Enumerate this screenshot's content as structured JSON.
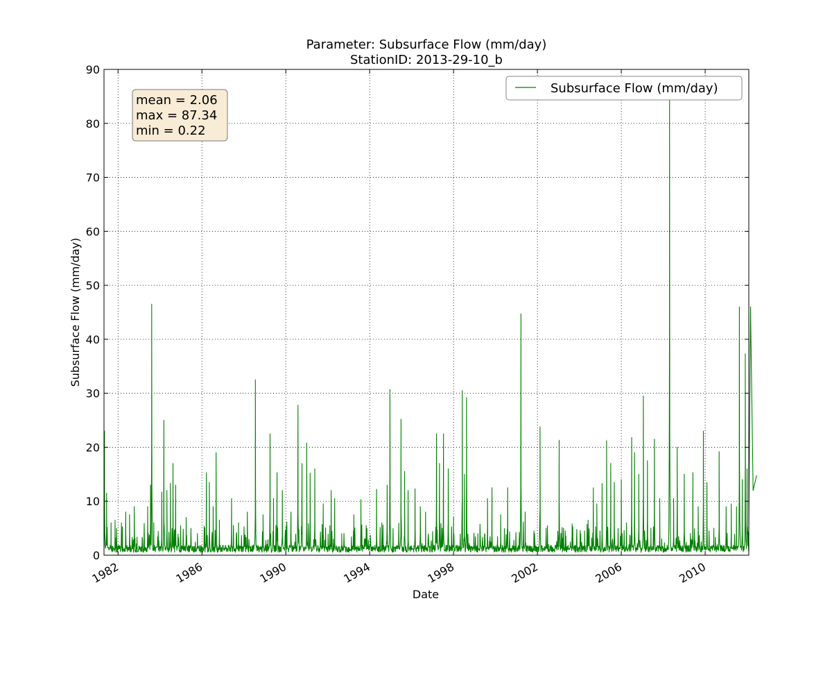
{
  "chart_data": {
    "type": "line",
    "title": [
      "Parameter: Subsurface Flow (mm/day)",
      "StationID: 2013-29-10_b"
    ],
    "xlabel": "Date",
    "ylabel": "Subsurface Flow (mm/day)",
    "xlim": [
      "1981-05-01",
      "2012-01-31"
    ],
    "ylim": [
      0,
      90
    ],
    "x_ticks": [
      "1982",
      "1986",
      "1990",
      "1994",
      "1998",
      "2002",
      "2006",
      "2010"
    ],
    "y_ticks": [
      0,
      10,
      20,
      30,
      40,
      50,
      60,
      70,
      80,
      90
    ],
    "grid": true,
    "legend": {
      "position": "top-right",
      "entries": [
        "Subsurface Flow (mm/day)"
      ]
    },
    "stats_box": [
      "mean = 2.06",
      "max = 87.34",
      "min = 0.22"
    ],
    "series": [
      {
        "name": "Subsurface Flow (mm/day)",
        "color": "#008000",
        "baseline": 1.2,
        "peaks": [
          [
            "1981-05-10",
            23.0
          ],
          [
            "1981-06-15",
            11.5
          ],
          [
            "1981-09-01",
            6.0
          ],
          [
            "1981-11-10",
            6.5
          ],
          [
            "1982-03-01",
            6.0
          ],
          [
            "1982-05-15",
            8.0
          ],
          [
            "1982-07-20",
            7.5
          ],
          [
            "1982-10-10",
            9.0
          ],
          [
            "1983-06-01",
            9.0
          ],
          [
            "1983-07-20",
            13.0
          ],
          [
            "1983-08-10",
            46.5
          ],
          [
            "1983-09-15",
            6.0
          ],
          [
            "1984-02-01",
            11.7
          ],
          [
            "1984-03-10",
            25.0
          ],
          [
            "1984-05-01",
            12.0
          ],
          [
            "1984-07-01",
            13.3
          ],
          [
            "1984-08-15",
            17.0
          ],
          [
            "1984-10-01",
            13.0
          ],
          [
            "1985-04-01",
            7.0
          ],
          [
            "1985-10-15",
            4.0
          ],
          [
            "1986-03-20",
            15.3
          ],
          [
            "1986-05-10",
            13.5
          ],
          [
            "1986-07-15",
            9.0
          ],
          [
            "1986-09-05",
            19.0
          ],
          [
            "1986-11-01",
            6.5
          ],
          [
            "1987-06-01",
            10.5
          ],
          [
            "1987-10-01",
            6.0
          ],
          [
            "1988-03-01",
            8.0
          ],
          [
            "1988-07-20",
            32.5
          ],
          [
            "1988-12-01",
            7.5
          ],
          [
            "1989-04-01",
            22.5
          ],
          [
            "1989-06-01",
            10.5
          ],
          [
            "1989-08-01",
            15.3
          ],
          [
            "1989-11-01",
            12.0
          ],
          [
            "1990-04-01",
            8.0
          ],
          [
            "1990-08-01",
            27.8
          ],
          [
            "1990-10-10",
            17.0
          ],
          [
            "1991-01-01",
            20.8
          ],
          [
            "1991-03-01",
            15.2
          ],
          [
            "1991-05-20",
            16.0
          ],
          [
            "1991-10-15",
            9.5
          ],
          [
            "1992-03-01",
            12.0
          ],
          [
            "1992-05-01",
            10.5
          ],
          [
            "1992-09-01",
            4.0
          ],
          [
            "1993-04-01",
            7.5
          ],
          [
            "1993-08-01",
            10.3
          ],
          [
            "1993-11-01",
            5.5
          ],
          [
            "1994-05-01",
            12.2
          ],
          [
            "1994-08-01",
            6.0
          ],
          [
            "1994-11-01",
            13.0
          ],
          [
            "1994-12-20",
            30.7
          ],
          [
            "1995-07-01",
            25.2
          ],
          [
            "1995-09-01",
            15.5
          ],
          [
            "1995-11-01",
            12.0
          ],
          [
            "1996-03-01",
            12.3
          ],
          [
            "1996-06-01",
            9.0
          ],
          [
            "1996-09-01",
            8.0
          ],
          [
            "1997-03-10",
            22.5
          ],
          [
            "1997-05-01",
            17.0
          ],
          [
            "1997-07-10",
            22.5
          ],
          [
            "1997-10-01",
            16.0
          ],
          [
            "1998-01-01",
            7.0
          ],
          [
            "1998-06-01",
            30.5
          ],
          [
            "1998-07-10",
            15.0
          ],
          [
            "1998-08-15",
            29.2
          ],
          [
            "1999-03-01",
            4.0
          ],
          [
            "1999-08-15",
            10.5
          ],
          [
            "1999-11-01",
            12.5
          ],
          [
            "2000-04-01",
            7.5
          ],
          [
            "2000-08-01",
            12.5
          ],
          [
            "2001-03-20",
            44.7
          ],
          [
            "2001-06-01",
            8.0
          ],
          [
            "2001-11-01",
            4.5
          ],
          [
            "2002-02-15",
            23.8
          ],
          [
            "2002-06-01",
            5.0
          ],
          [
            "2003-01-15",
            21.3
          ],
          [
            "2003-05-01",
            4.5
          ],
          [
            "2004-04-01",
            4.5
          ],
          [
            "2004-06-01",
            6.5
          ],
          [
            "2004-09-01",
            12.5
          ],
          [
            "2004-11-01",
            9.5
          ],
          [
            "2005-02-01",
            13.3
          ],
          [
            "2005-04-20",
            21.2
          ],
          [
            "2005-07-01",
            17.0
          ],
          [
            "2005-09-01",
            13.5
          ],
          [
            "2006-01-01",
            14.0
          ],
          [
            "2006-04-01",
            6.0
          ],
          [
            "2006-07-01",
            21.8
          ],
          [
            "2006-08-20",
            19.0
          ],
          [
            "2006-11-01",
            15.0
          ],
          [
            "2007-01-20",
            29.5
          ],
          [
            "2007-04-01",
            17.5
          ],
          [
            "2007-06-01",
            5.0
          ],
          [
            "2007-08-01",
            21.5
          ],
          [
            "2007-11-01",
            10.5
          ],
          [
            "2008-04-20",
            87.34
          ],
          [
            "2008-07-01",
            10.5
          ],
          [
            "2008-09-01",
            20.0
          ],
          [
            "2009-01-01",
            15.0
          ],
          [
            "2009-06-01",
            15.3
          ],
          [
            "2009-09-01",
            9.0
          ],
          [
            "2009-12-01",
            23.0
          ],
          [
            "2010-02-01",
            13.5
          ],
          [
            "2010-06-01",
            5.0
          ],
          [
            "2010-09-01",
            19.2
          ],
          [
            "2011-01-01",
            9.0
          ],
          [
            "2011-04-01",
            9.5
          ],
          [
            "2011-07-01",
            9.0
          ],
          [
            "2011-08-20",
            46.0
          ],
          [
            "2011-10-10",
            14.0
          ],
          [
            "2011-12-01",
            37.3
          ],
          [
            "2012-01-01",
            16.0
          ],
          [
            "2012-03-01",
            46.0
          ],
          [
            "2012-04-15",
            12.0
          ],
          [
            "2012-06-15",
            14.8
          ]
        ]
      }
    ]
  }
}
